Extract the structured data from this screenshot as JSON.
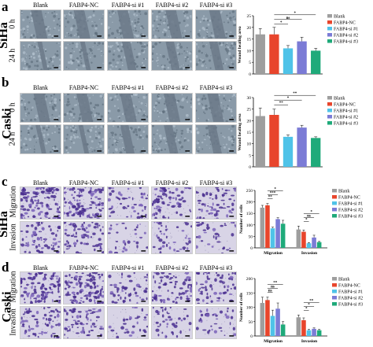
{
  "panel_letters": [
    "a",
    "b",
    "c",
    "d"
  ],
  "cell_lines": {
    "a": "SiHa",
    "b": "Caski",
    "c": "SiHa",
    "d": "Caski"
  },
  "column_headers": [
    "Blank",
    "FABP4-NC",
    "FABP4-si #1",
    "FABP4-si #2",
    "FABP4-si #3"
  ],
  "row_labels": {
    "wound": [
      "0 h",
      "24 h"
    ],
    "transwell": [
      "Migration",
      "Invasion"
    ]
  },
  "colors": {
    "blank": "#9e9e9e",
    "nc": "#e8452c",
    "si1": "#4fc3e8",
    "si2": "#7b7bd6",
    "si3": "#1faa7a"
  },
  "chart_data": [
    {
      "type": "bar",
      "id": "a",
      "categories": [
        "Blank",
        "FABP4-NC",
        "FABP4-si #1",
        "FABP4-si #2",
        "FABP4-si #3"
      ],
      "values": [
        17,
        17,
        11,
        14,
        10
      ],
      "errors": [
        2.5,
        3,
        1.2,
        1.8,
        1
      ],
      "ylabel": "Wound healing area",
      "ylim": [
        0,
        25
      ],
      "yticks": [
        0,
        5,
        10,
        15,
        20,
        25
      ],
      "legend": [
        "Blank",
        "FABP4-NC",
        "FABP4-si #1",
        "FABP4-si #2",
        "FABP4-si #3"
      ],
      "annotations": [
        {
          "from": 1,
          "to": 4,
          "label": "*"
        },
        {
          "from": 1,
          "to": 3,
          "label": "ns"
        },
        {
          "from": 1,
          "to": 2,
          "label": "*"
        }
      ]
    },
    {
      "type": "bar",
      "id": "b",
      "categories": [
        "Blank",
        "FABP4-NC",
        "FABP4-si #1",
        "FABP4-si #2",
        "FABP4-si #3"
      ],
      "values": [
        22,
        22.5,
        13,
        17,
        12.5
      ],
      "errors": [
        3.5,
        2.5,
        0.8,
        1,
        0.5
      ],
      "ylabel": "Wound healing area",
      "ylim": [
        0,
        30
      ],
      "yticks": [
        0,
        5,
        10,
        15,
        20,
        25,
        30
      ],
      "legend": [
        "Blank",
        "FABP4-NC",
        "FABP4-si #1",
        "FABP4-si #2",
        "FABP4-si #3"
      ],
      "annotations": [
        {
          "from": 1,
          "to": 4,
          "label": "**"
        },
        {
          "from": 1,
          "to": 3,
          "label": "*"
        },
        {
          "from": 1,
          "to": 2,
          "label": "**"
        }
      ]
    },
    {
      "type": "bar",
      "id": "c",
      "groups": [
        "Migration",
        "Invasion"
      ],
      "series": [
        {
          "name": "Blank",
          "values": [
            175,
            80
          ],
          "errors": [
            10,
            15
          ]
        },
        {
          "name": "FABP4-NC",
          "values": [
            185,
            70
          ],
          "errors": [
            8,
            8
          ]
        },
        {
          "name": "FABP4-si #1",
          "values": [
            85,
            20
          ],
          "errors": [
            5,
            3
          ]
        },
        {
          "name": "FABP4-si #2",
          "values": [
            125,
            45
          ],
          "errors": [
            6,
            10
          ]
        },
        {
          "name": "FABP4-si #3",
          "values": [
            105,
            25
          ],
          "errors": [
            15,
            3
          ]
        }
      ],
      "ylabel": "Number of cells",
      "ylim": [
        0,
        250
      ],
      "yticks": [
        0,
        50,
        100,
        150,
        200,
        250
      ],
      "legend": [
        "Blank",
        "FABP4-NC",
        "FABP4-si #1",
        "FABP4-si #2",
        "FABP4-si #3"
      ],
      "annotations": [
        {
          "group": 0,
          "from": 1,
          "to": 4,
          "label": "*"
        },
        {
          "group": 0,
          "from": 1,
          "to": 3,
          "label": "***"
        },
        {
          "group": 0,
          "from": 1,
          "to": 2,
          "label": "**"
        },
        {
          "group": 1,
          "from": 1,
          "to": 4,
          "label": "*"
        },
        {
          "group": 1,
          "from": 1,
          "to": 3,
          "label": "ns"
        },
        {
          "group": 1,
          "from": 1,
          "to": 2,
          "label": "*"
        }
      ]
    },
    {
      "type": "bar",
      "id": "d",
      "groups": [
        "Migration",
        "Invasion"
      ],
      "series": [
        {
          "name": "Blank",
          "values": [
            115,
            65
          ],
          "errors": [
            20,
            8
          ]
        },
        {
          "name": "FABP4-NC",
          "values": [
            125,
            55
          ],
          "errors": [
            10,
            8
          ]
        },
        {
          "name": "FABP4-si #1",
          "values": [
            70,
            20
          ],
          "errors": [
            20,
            3
          ]
        },
        {
          "name": "FABP4-si #2",
          "values": [
            95,
            25
          ],
          "errors": [
            20,
            3
          ]
        },
        {
          "name": "FABP4-si #3",
          "values": [
            40,
            20
          ],
          "errors": [
            10,
            3
          ]
        }
      ],
      "ylabel": "Number of cells",
      "ylim": [
        0,
        200
      ],
      "yticks": [
        0,
        50,
        100,
        150,
        200
      ],
      "legend": [
        "Blank",
        "FABP4-NC",
        "FABP4-si #1",
        "FABP4-si #2",
        "FABP4-si #3"
      ],
      "annotations": [
        {
          "group": 0,
          "from": 1,
          "to": 4,
          "label": "**"
        },
        {
          "group": 0,
          "from": 1,
          "to": 3,
          "label": "ns"
        },
        {
          "group": 0,
          "from": 1,
          "to": 2,
          "label": "ns"
        },
        {
          "group": 1,
          "from": 1,
          "to": 4,
          "label": "**"
        },
        {
          "group": 1,
          "from": 1,
          "to": 3,
          "label": "*"
        },
        {
          "group": 1,
          "from": 1,
          "to": 2,
          "label": "*"
        }
      ]
    }
  ]
}
